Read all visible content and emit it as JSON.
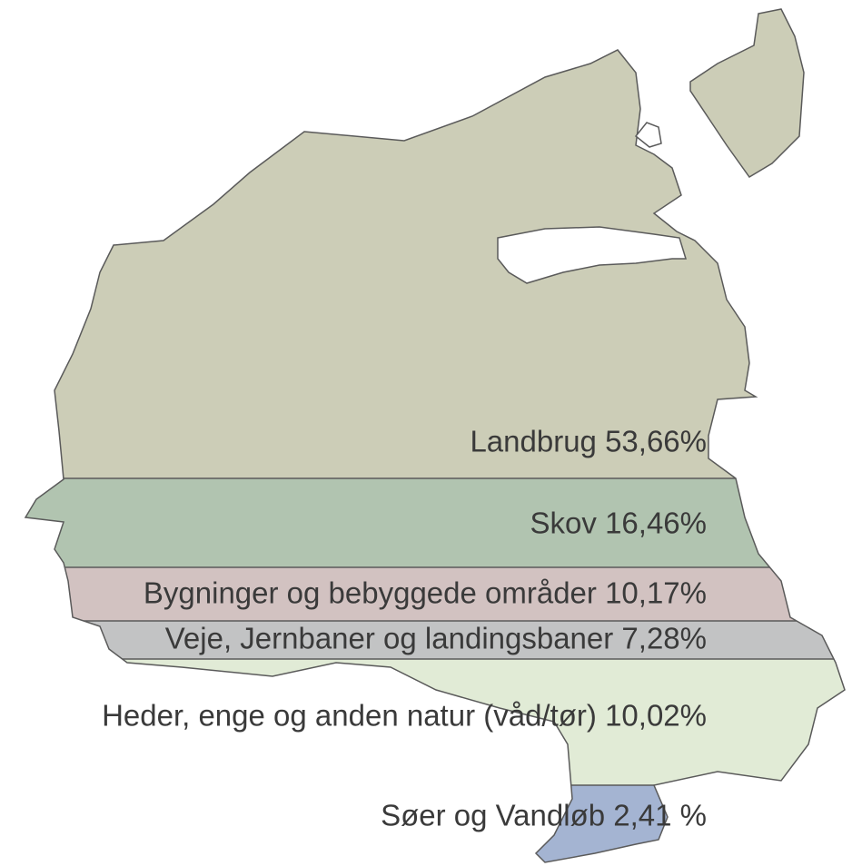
{
  "labels": [
    "Landbrug 53,66%",
    "Skov 16,46%",
    "Bygninger og bebyggede områder 10,17%",
    "Veje, Jernbaner og landingsbaner 7,28%",
    "Heder, enge og anden natur (våd/tør) 10,02%",
    "Søer og Vandløb 2,41 %"
  ]
}
